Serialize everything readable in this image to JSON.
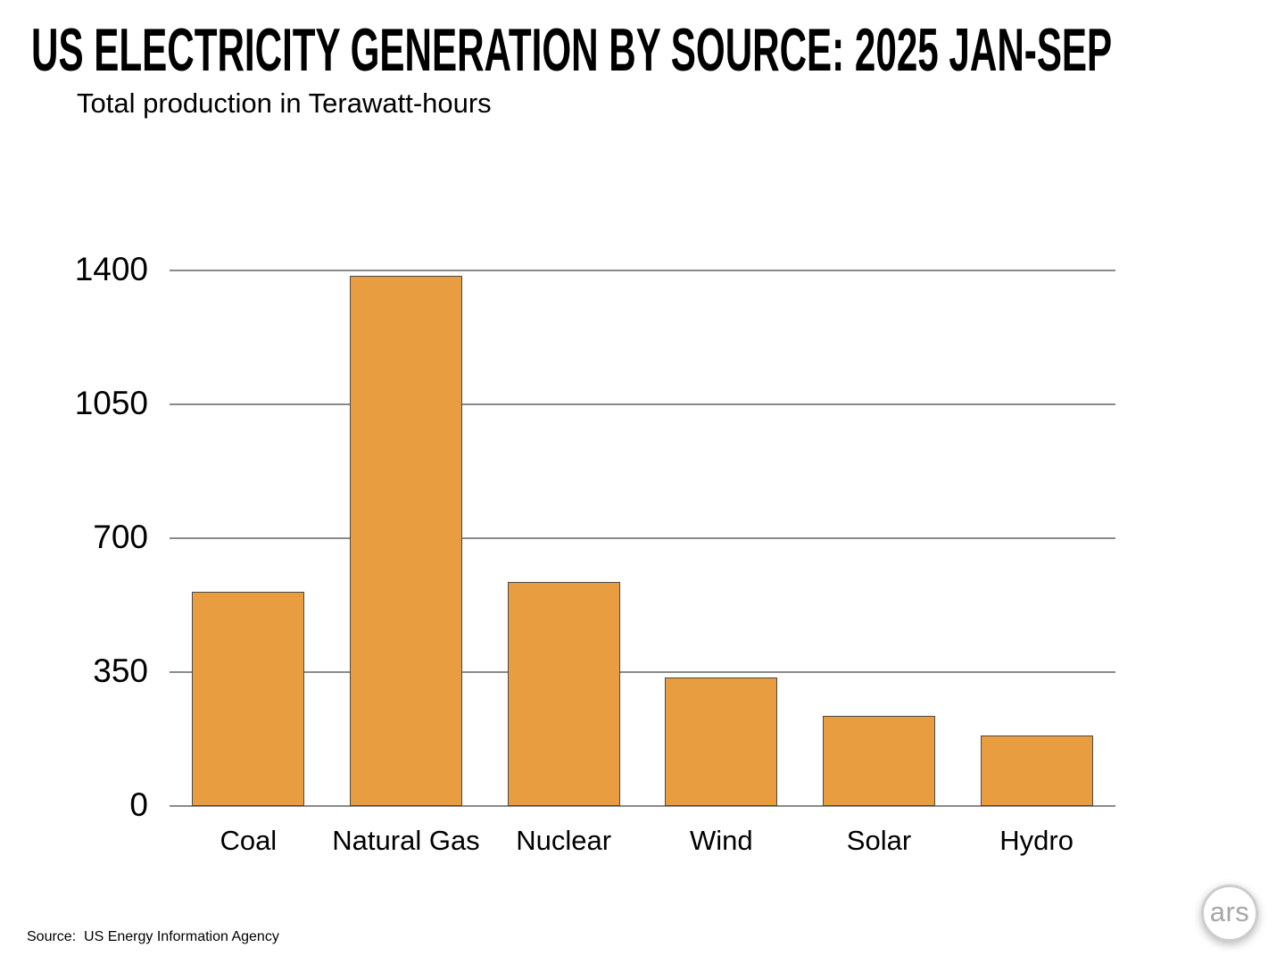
{
  "chart_data": {
    "type": "bar",
    "title": "US ELECTRICITY GENERATION BY SOURCE: 2025 JAN-SEP",
    "subtitle": "Total production in Terawatt-hours",
    "categories": [
      "Coal",
      "Natural Gas",
      "Nuclear",
      "Wind",
      "Solar",
      "Hydro"
    ],
    "values": [
      560,
      1385,
      585,
      335,
      235,
      185
    ],
    "xlabel": "",
    "ylabel": "Terawatt-hours",
    "ylim": [
      0,
      1400
    ],
    "yticks": [
      0,
      350,
      700,
      1050,
      1400
    ],
    "grid": true,
    "legend": "none",
    "bar_color": "#E89D40",
    "bar_border_color": "#4A4A4A",
    "gridline_color": "#8A8A8A",
    "background_color": "#FFFFFF"
  },
  "footer": {
    "source": "Source:  US Energy Information Agency",
    "logo_text": "ars"
  }
}
